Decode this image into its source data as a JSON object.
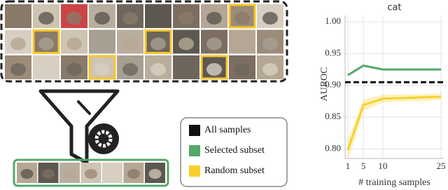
{
  "chart_data": {
    "type": "line",
    "title": "cat",
    "xlabel": "# training samples",
    "ylabel": "AUROC",
    "x": [
      1,
      5,
      10,
      25
    ],
    "series": [
      {
        "name": "All samples",
        "color": "#111111",
        "style": "hline",
        "value": 0.905
      },
      {
        "name": "Selected subset",
        "color": "#55a868",
        "values": [
          0.916,
          0.931,
          0.925,
          0.925
        ]
      },
      {
        "name": "Random subset",
        "color": "#f7d02c",
        "values": [
          0.798,
          0.869,
          0.879,
          0.882
        ],
        "lower": [
          0.78,
          0.86,
          0.873,
          0.877
        ],
        "upper": [
          0.815,
          0.878,
          0.885,
          0.887
        ]
      }
    ],
    "xlim": [
      0.3,
      25.7
    ],
    "ylim": [
      0.785,
      1.01
    ],
    "xticks": [
      1,
      5,
      10,
      25
    ],
    "yticks": [
      {
        "value": 0.8,
        "label": "0.80"
      },
      0.85,
      {
        "value": 0.9,
        "label": "0.90"
      },
      0.95,
      {
        "value": 1,
        "label": "1.00"
      }
    ],
    "grid": true
  }
}
